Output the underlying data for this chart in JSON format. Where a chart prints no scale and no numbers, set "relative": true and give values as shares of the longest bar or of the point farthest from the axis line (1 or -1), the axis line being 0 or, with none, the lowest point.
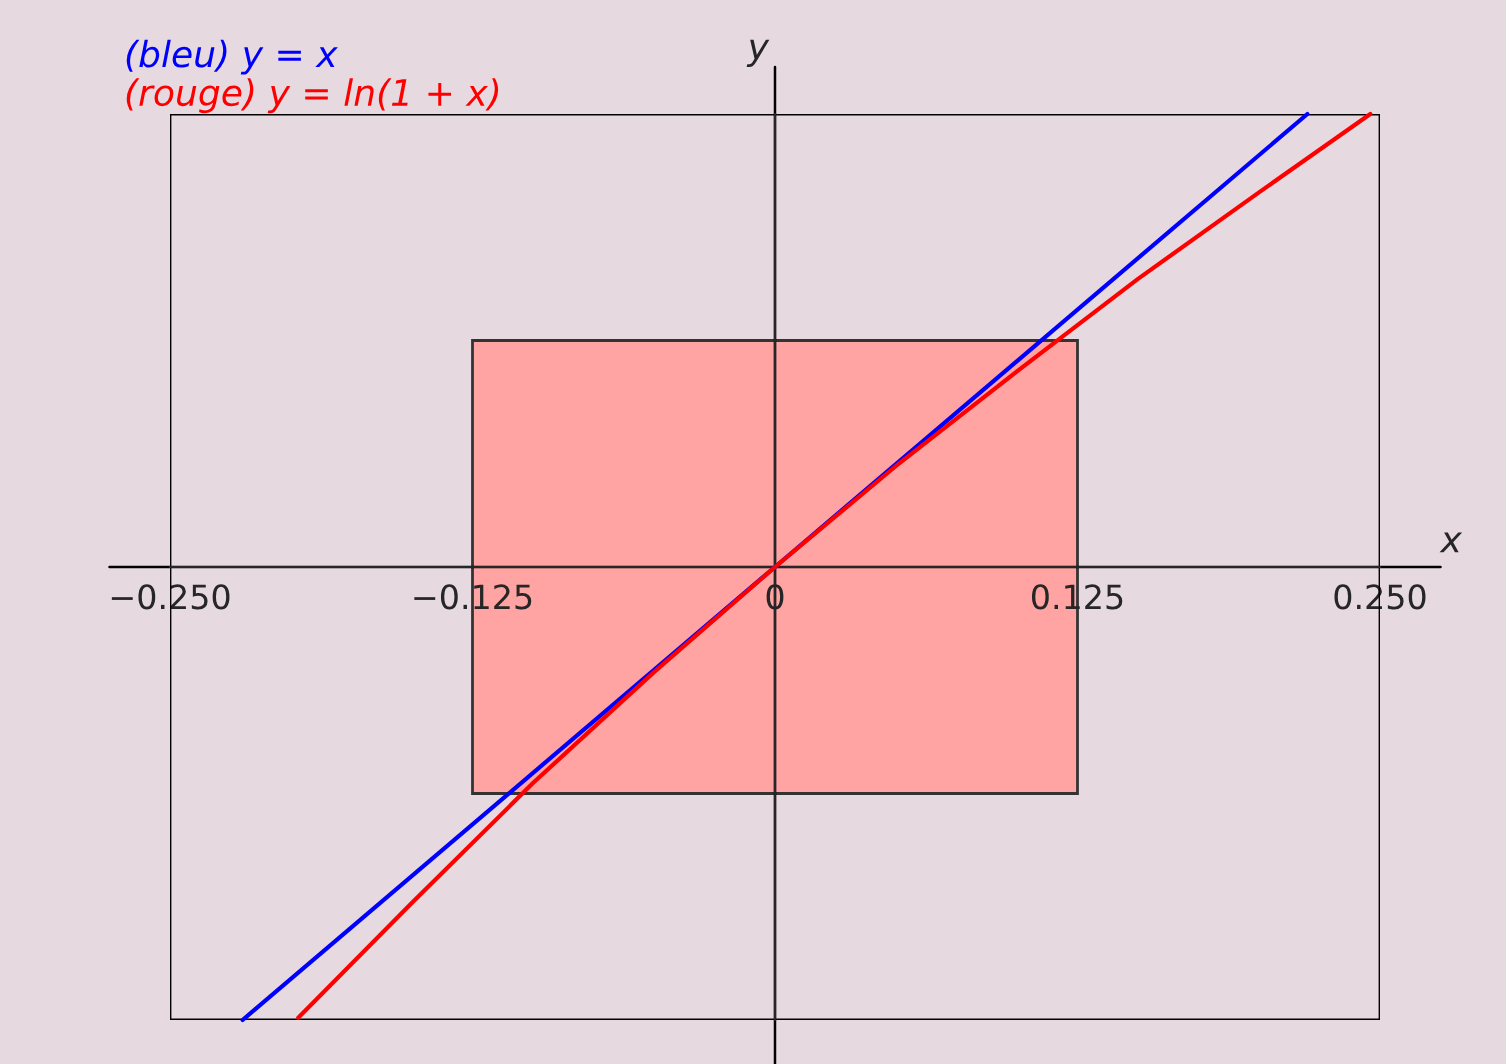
{
  "chart_data": {
    "type": "line",
    "xlabel": "x",
    "ylabel": "y",
    "xlim": [
      -0.25,
      0.25
    ],
    "relative": true,
    "xticks": [
      {
        "value": -0.25,
        "label": "−0.250"
      },
      {
        "value": -0.125,
        "label": "−0.125"
      },
      {
        "value": 0,
        "label": "0"
      },
      {
        "value": 0.125,
        "label": "0.125"
      },
      {
        "value": 0.25,
        "label": "0.250"
      }
    ],
    "tick_labels": "x",
    "legend": "top left",
    "series": [
      {
        "name": "(bleu) y = x",
        "color": "#0000ff",
        "x": [
          -0.22,
          0,
          0.22
        ],
        "values": [
          -1,
          0,
          1
        ]
      },
      {
        "name": "(rouge) y = ln(1 + x)",
        "color": "#ff0000",
        "x": [
          -0.197,
          -0.15,
          -0.1,
          -0.05,
          0,
          0.05,
          0.1,
          0.15,
          0.2,
          0.246
        ],
        "values": [
          -0.995,
          -0.741,
          -0.477,
          -0.232,
          0,
          0.223,
          0.432,
          0.636,
          0.827,
          1
        ]
      }
    ]
  }
}
